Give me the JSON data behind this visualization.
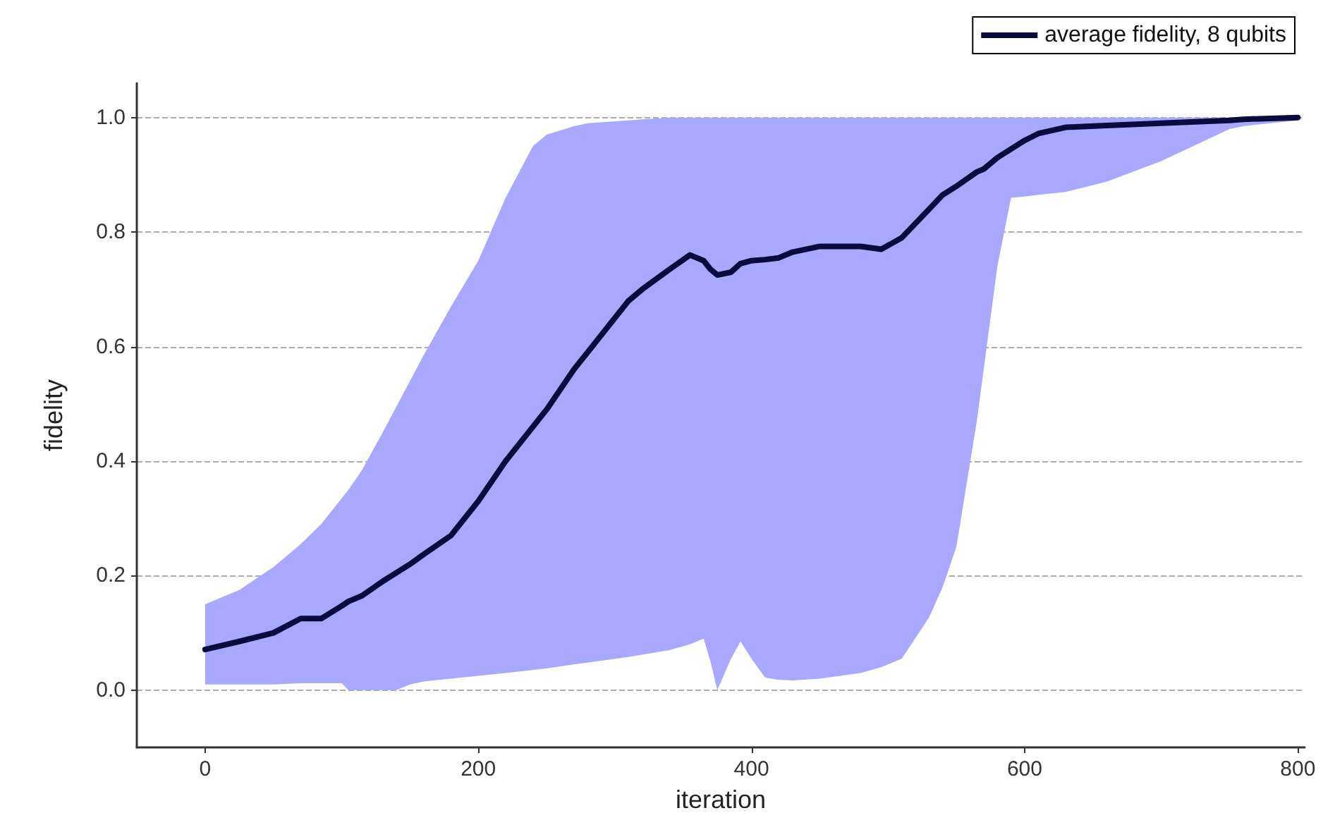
{
  "chart_data": {
    "type": "line",
    "xlabel": "iteration",
    "ylabel": "fidelity",
    "xlim": [
      -50,
      805
    ],
    "xticks": [
      0,
      200,
      400,
      600,
      800
    ],
    "ylim": [
      -0.1,
      1.06
    ],
    "yticks": [
      {
        "value": 0,
        "label": "0.0"
      },
      {
        "value": 0.2,
        "label": "0.2"
      },
      {
        "value": 0.4,
        "label": "0.4"
      },
      {
        "value": 0.6,
        "label": "0.6"
      },
      {
        "value": 0.8,
        "label": "0.8"
      },
      {
        "value": 1,
        "label": "1.0"
      }
    ],
    "grid": "y",
    "legend": "top right",
    "marker": "none",
    "line_style": "solid",
    "series": [
      {
        "name": "average fidelity, 8 qubits",
        "color": "#0a0a3c",
        "x": [
          0,
          25,
          50,
          70,
          85,
          100,
          105,
          115,
          130,
          140,
          150,
          160,
          180,
          200,
          220,
          240,
          250,
          270,
          280,
          310,
          320,
          340,
          355,
          365,
          370,
          375,
          385,
          392,
          400,
          410,
          420,
          430,
          450,
          480,
          495,
          510,
          530,
          540,
          550,
          565,
          570,
          580,
          590,
          600,
          610,
          630,
          660,
          700,
          750,
          760,
          800
        ],
        "values": [
          0.071,
          0.085,
          0.1,
          0.125,
          0.125,
          0.147,
          0.155,
          0.165,
          0.19,
          0.205,
          0.22,
          0.237,
          0.27,
          0.33,
          0.4,
          0.46,
          0.49,
          0.56,
          0.59,
          0.68,
          0.7,
          0.735,
          0.76,
          0.75,
          0.735,
          0.725,
          0.73,
          0.745,
          0.75,
          0.752,
          0.755,
          0.765,
          0.775,
          0.775,
          0.77,
          0.79,
          0.84,
          0.865,
          0.88,
          0.905,
          0.91,
          0.93,
          0.945,
          0.96,
          0.972,
          0.983,
          0.986,
          0.99,
          0.995,
          0.997,
          1.0
        ],
        "lower": [
          0.01,
          0.01,
          0.01,
          0.012,
          0.012,
          0.012,
          0.0,
          0.0,
          0.0,
          0.0,
          0.01,
          0.015,
          0.02,
          0.025,
          0.03,
          0.035,
          0.038,
          0.045,
          0.048,
          0.058,
          0.062,
          0.07,
          0.08,
          0.09,
          0.05,
          0.0,
          0.055,
          0.085,
          0.055,
          0.022,
          0.018,
          0.017,
          0.02,
          0.03,
          0.04,
          0.055,
          0.127,
          0.18,
          0.25,
          0.47,
          0.56,
          0.74,
          0.86,
          0.862,
          0.865,
          0.87,
          0.888,
          0.924,
          0.98,
          0.985,
          0.995
        ],
        "upper": [
          0.15,
          0.175,
          0.215,
          0.255,
          0.29,
          0.335,
          0.35,
          0.385,
          0.45,
          0.495,
          0.54,
          0.585,
          0.67,
          0.75,
          0.86,
          0.95,
          0.97,
          0.985,
          0.99,
          0.995,
          0.997,
          1.0,
          1.0,
          1.0,
          1.0,
          1.0,
          1.0,
          1.0,
          1.0,
          1.0,
          1.0,
          1.0,
          1.0,
          1.0,
          1.0,
          1.0,
          1.0,
          1.0,
          1.0,
          1.0,
          1.0,
          1.0,
          1.0,
          1.0,
          1.0,
          1.0,
          1.0,
          1.0,
          1.0,
          1.0,
          1.0
        ]
      }
    ]
  }
}
